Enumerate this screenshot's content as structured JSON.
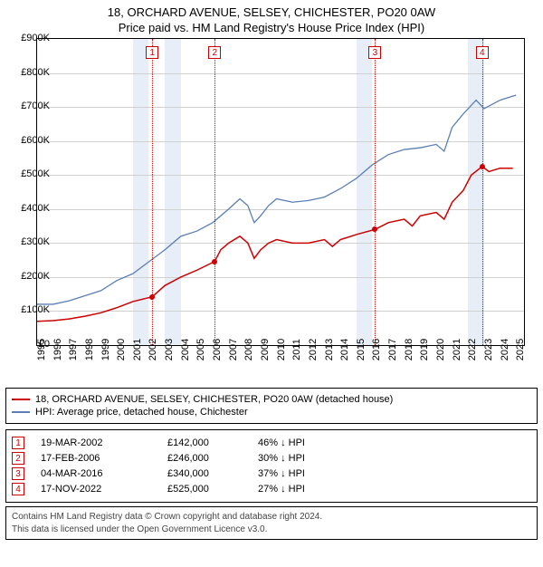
{
  "title": "18, ORCHARD AVENUE, SELSEY, CHICHESTER, PO20 0AW",
  "subtitle": "Price paid vs. HM Land Registry's House Price Index (HPI)",
  "chart": {
    "type": "line",
    "xlim": [
      1995,
      2025.5
    ],
    "ylim": [
      0,
      900000
    ],
    "ytick_step": 100000,
    "yticks_labels": [
      "£0",
      "£100K",
      "£200K",
      "£300K",
      "£400K",
      "£500K",
      "£600K",
      "£700K",
      "£800K",
      "£900K"
    ],
    "xticks": [
      1995,
      1996,
      1997,
      1998,
      1999,
      2000,
      2001,
      2002,
      2003,
      2004,
      2005,
      2006,
      2007,
      2008,
      2009,
      2010,
      2011,
      2012,
      2013,
      2014,
      2015,
      2016,
      2017,
      2018,
      2019,
      2020,
      2021,
      2022,
      2023,
      2024,
      2025
    ],
    "bands": [
      [
        2001,
        2002
      ],
      [
        2003,
        2004
      ],
      [
        2015,
        2016
      ],
      [
        2022,
        2023
      ]
    ],
    "grid_color": "#d0d0d0",
    "band_color": "#e8eef7",
    "series": {
      "price": {
        "color": "#cc0000",
        "width": 1.5,
        "label": "18, ORCHARD AVENUE, SELSEY, CHICHESTER, PO20 0AW (detached house)",
        "points": [
          [
            1995,
            70000
          ],
          [
            1996,
            72000
          ],
          [
            1997,
            77000
          ],
          [
            1998,
            85000
          ],
          [
            1999,
            95000
          ],
          [
            2000,
            110000
          ],
          [
            2001,
            128000
          ],
          [
            2002.21,
            142000
          ],
          [
            2003,
            175000
          ],
          [
            2004,
            200000
          ],
          [
            2005,
            220000
          ],
          [
            2006.13,
            246000
          ],
          [
            2006.5,
            280000
          ],
          [
            2007,
            300000
          ],
          [
            2007.7,
            320000
          ],
          [
            2008.2,
            300000
          ],
          [
            2008.6,
            255000
          ],
          [
            2009,
            280000
          ],
          [
            2009.5,
            300000
          ],
          [
            2010,
            310000
          ],
          [
            2011,
            300000
          ],
          [
            2012,
            300000
          ],
          [
            2013,
            310000
          ],
          [
            2013.5,
            290000
          ],
          [
            2014,
            310000
          ],
          [
            2015,
            325000
          ],
          [
            2016.17,
            340000
          ],
          [
            2017,
            360000
          ],
          [
            2018,
            370000
          ],
          [
            2018.5,
            350000
          ],
          [
            2019,
            380000
          ],
          [
            2020,
            390000
          ],
          [
            2020.5,
            370000
          ],
          [
            2021,
            420000
          ],
          [
            2021.7,
            455000
          ],
          [
            2022.2,
            500000
          ],
          [
            2022.88,
            525000
          ],
          [
            2023.3,
            510000
          ],
          [
            2024,
            520000
          ],
          [
            2024.8,
            520000
          ]
        ]
      },
      "hpi": {
        "color": "#5b7fb5",
        "width": 1.3,
        "label": "HPI: Average price, detached house, Chichester",
        "points": [
          [
            1995,
            120000
          ],
          [
            1996,
            120000
          ],
          [
            1997,
            130000
          ],
          [
            1998,
            145000
          ],
          [
            1999,
            160000
          ],
          [
            2000,
            190000
          ],
          [
            2001,
            210000
          ],
          [
            2002,
            245000
          ],
          [
            2003,
            280000
          ],
          [
            2004,
            320000
          ],
          [
            2005,
            335000
          ],
          [
            2006,
            360000
          ],
          [
            2007,
            400000
          ],
          [
            2007.7,
            430000
          ],
          [
            2008.2,
            410000
          ],
          [
            2008.6,
            360000
          ],
          [
            2009,
            380000
          ],
          [
            2009.5,
            410000
          ],
          [
            2010,
            430000
          ],
          [
            2011,
            420000
          ],
          [
            2012,
            425000
          ],
          [
            2013,
            435000
          ],
          [
            2014,
            460000
          ],
          [
            2015,
            490000
          ],
          [
            2016,
            530000
          ],
          [
            2017,
            560000
          ],
          [
            2018,
            575000
          ],
          [
            2019,
            580000
          ],
          [
            2020,
            590000
          ],
          [
            2020.5,
            570000
          ],
          [
            2021,
            640000
          ],
          [
            2021.7,
            680000
          ],
          [
            2022.5,
            720000
          ],
          [
            2023,
            695000
          ],
          [
            2024,
            720000
          ],
          [
            2025,
            735000
          ]
        ]
      }
    },
    "markers": [
      {
        "n": "1",
        "x": 2002.21,
        "y": 142000
      },
      {
        "n": "2",
        "x": 2006.13,
        "y": 246000
      },
      {
        "n": "3",
        "x": 2016.17,
        "y": 340000
      },
      {
        "n": "4",
        "x": 2022.88,
        "y": 525000
      }
    ]
  },
  "sales": [
    {
      "n": "1",
      "date": "19-MAR-2002",
      "price": "£142,000",
      "diff": "46% ↓ HPI"
    },
    {
      "n": "2",
      "date": "17-FEB-2006",
      "price": "£246,000",
      "diff": "30% ↓ HPI"
    },
    {
      "n": "3",
      "date": "04-MAR-2016",
      "price": "£340,000",
      "diff": "37% ↓ HPI"
    },
    {
      "n": "4",
      "date": "17-NOV-2022",
      "price": "£525,000",
      "diff": "27% ↓ HPI"
    }
  ],
  "footer": {
    "line1": "Contains HM Land Registry data © Crown copyright and database right 2024.",
    "line2": "This data is licensed under the Open Government Licence v3.0."
  }
}
